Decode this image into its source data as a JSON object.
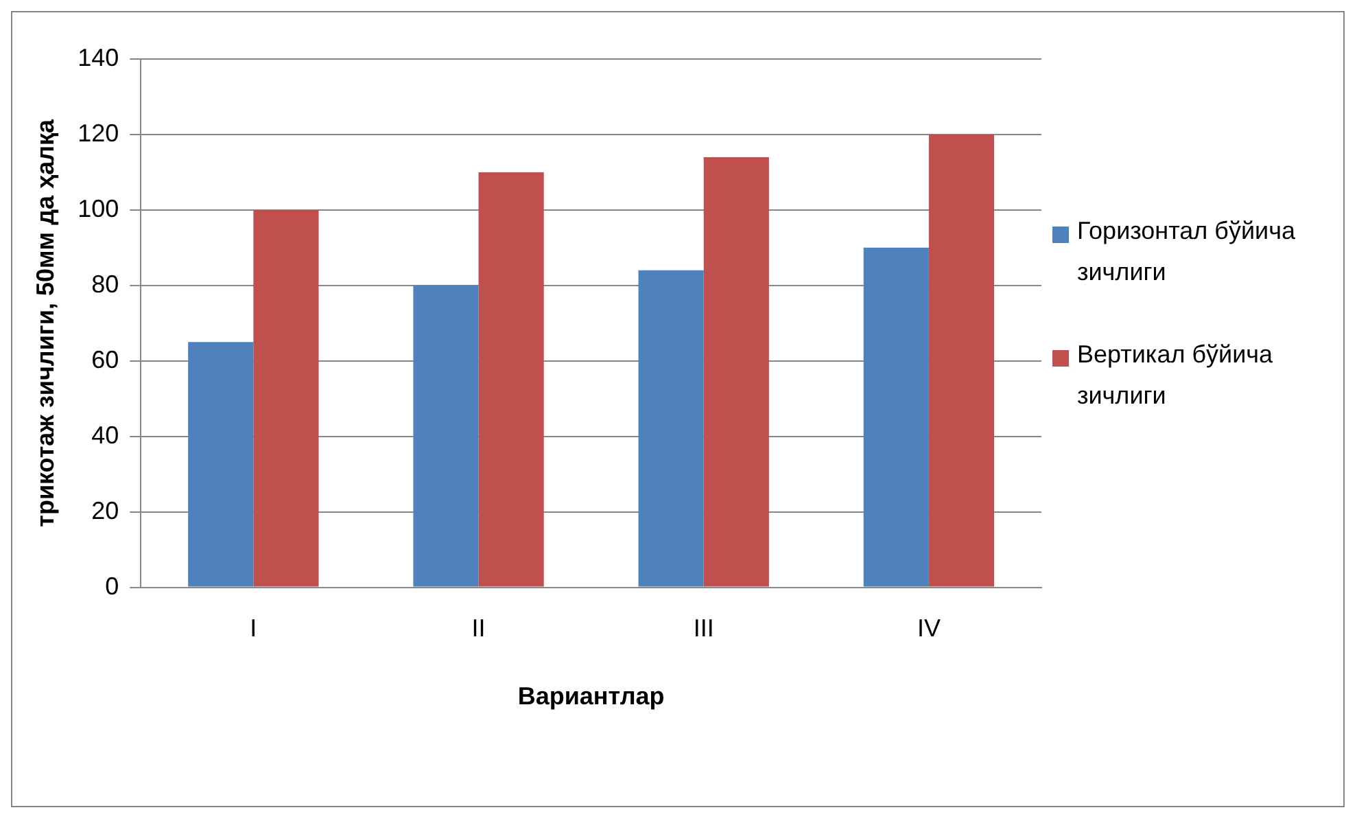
{
  "chart_data": {
    "type": "bar",
    "xlabel": "Вариантлар",
    "ylabel": "трикотаж зичлиги, 50мм да ҳалқа",
    "categories": [
      "I",
      "II",
      "III",
      "IV"
    ],
    "series": [
      {
        "name": "Горизонтал бўйича зичлиги",
        "color": "#4f81bd",
        "values": [
          65,
          80,
          84,
          90
        ]
      },
      {
        "name": "Вертикал бўйича зичлиги",
        "color": "#c0504d",
        "values": [
          100,
          110,
          114,
          120
        ]
      }
    ],
    "ylim": [
      0,
      140
    ],
    "yticks": [
      0,
      20,
      40,
      60,
      80,
      100,
      120,
      140
    ],
    "grid": "y",
    "legend": "right"
  }
}
